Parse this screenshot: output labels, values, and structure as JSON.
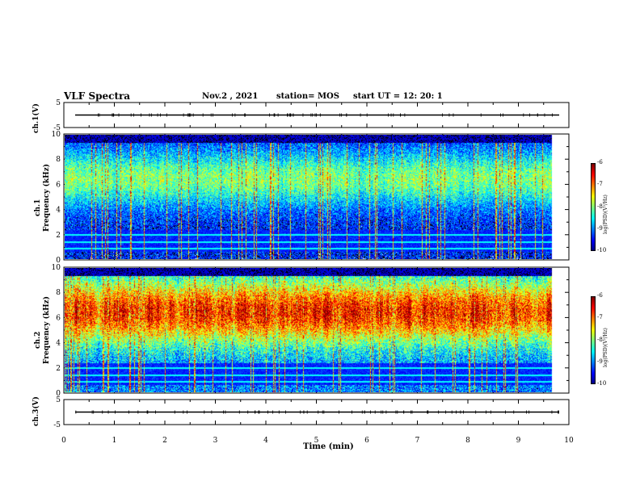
{
  "header": {
    "title": "VLF Spectra",
    "date": "Nov.2 , 2021",
    "station": "station= MOS",
    "start": "start UT = 12: 20: 1"
  },
  "chart_data": [
    {
      "type": "line",
      "name_label": "ch.1(V)",
      "ylabel": "ch.1(V)",
      "ylim": [
        -5,
        5
      ],
      "yticks": [
        "5",
        "-5"
      ],
      "xlim": [
        0,
        10
      ],
      "level": 0
    },
    {
      "type": "heatmap",
      "ylabel": "ch.1\nFrequency (kHz)",
      "ylabel_line1": "ch.1",
      "ylabel_line2": "Frequency (kHz)",
      "ylim": [
        0,
        10
      ],
      "yticks": [
        "0",
        "2",
        "4",
        "6",
        "8",
        "10"
      ],
      "xlim": [
        0,
        10
      ],
      "data_xmax": 9.85,
      "colorbar": {
        "label": "log(PSD)(V²/Hz)",
        "ticks": [
          "-6",
          "-7",
          "-8",
          "-9",
          "-10"
        ],
        "range": [
          -10,
          -6
        ]
      },
      "band_center_khz": 6.5,
      "intensity": "low"
    },
    {
      "type": "heatmap",
      "ylabel_line1": "ch.2",
      "ylabel_line2": "Frequency (kHz)",
      "ylim": [
        0,
        10
      ],
      "yticks": [
        "0",
        "2",
        "4",
        "6",
        "8",
        "10"
      ],
      "xlim": [
        0,
        10
      ],
      "data_xmax": 9.85,
      "colorbar": {
        "label": "log(PSD)(V²/Hz)",
        "ticks": [
          "-6",
          "-7",
          "-8",
          "-9",
          "-10"
        ],
        "range": [
          -10,
          -6
        ]
      },
      "band_center_khz": 6.5,
      "intensity": "high"
    },
    {
      "type": "line",
      "name_label": "ch.3(V)",
      "ylabel": "ch.3(V)",
      "ylim": [
        -5,
        5
      ],
      "yticks": [
        "5",
        "-5"
      ],
      "xlim": [
        0,
        10
      ],
      "level": 0
    }
  ],
  "xaxis": {
    "label": "Time (min)",
    "ticks": [
      "0",
      "1",
      "2",
      "3",
      "4",
      "5",
      "6",
      "7",
      "8",
      "9",
      "10"
    ]
  },
  "colors": {
    "background": "#ffffff",
    "axis": "#000000"
  }
}
